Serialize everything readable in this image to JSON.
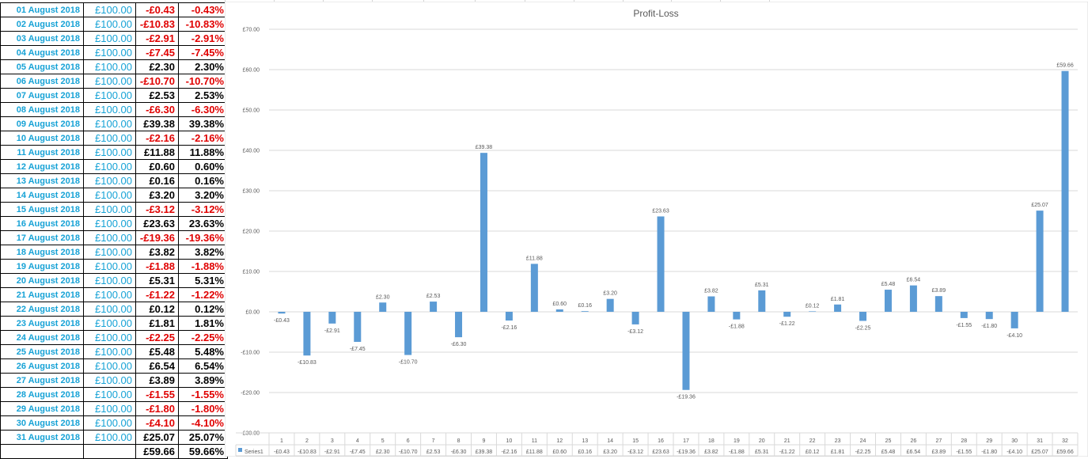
{
  "table": {
    "rows": [
      {
        "date": "01 August 2018",
        "capital": "£100.00",
        "pl": "-£0.43",
        "pct": "-0.43%"
      },
      {
        "date": "02 August 2018",
        "capital": "£100.00",
        "pl": "-£10.83",
        "pct": "-10.83%"
      },
      {
        "date": "03 August 2018",
        "capital": "£100.00",
        "pl": "-£2.91",
        "pct": "-2.91%"
      },
      {
        "date": "04 August 2018",
        "capital": "£100.00",
        "pl": "-£7.45",
        "pct": "-7.45%"
      },
      {
        "date": "05 August 2018",
        "capital": "£100.00",
        "pl": "£2.30",
        "pct": "2.30%"
      },
      {
        "date": "06 August 2018",
        "capital": "£100.00",
        "pl": "-£10.70",
        "pct": "-10.70%"
      },
      {
        "date": "07 August 2018",
        "capital": "£100.00",
        "pl": "£2.53",
        "pct": "2.53%"
      },
      {
        "date": "08 August 2018",
        "capital": "£100.00",
        "pl": "-£6.30",
        "pct": "-6.30%"
      },
      {
        "date": "09 August 2018",
        "capital": "£100.00",
        "pl": "£39.38",
        "pct": "39.38%"
      },
      {
        "date": "10 August 2018",
        "capital": "£100.00",
        "pl": "-£2.16",
        "pct": "-2.16%"
      },
      {
        "date": "11 August 2018",
        "capital": "£100.00",
        "pl": "£11.88",
        "pct": "11.88%"
      },
      {
        "date": "12 August 2018",
        "capital": "£100.00",
        "pl": "£0.60",
        "pct": "0.60%"
      },
      {
        "date": "13 August 2018",
        "capital": "£100.00",
        "pl": "£0.16",
        "pct": "0.16%"
      },
      {
        "date": "14 August 2018",
        "capital": "£100.00",
        "pl": "£3.20",
        "pct": "3.20%"
      },
      {
        "date": "15 August 2018",
        "capital": "£100.00",
        "pl": "-£3.12",
        "pct": "-3.12%"
      },
      {
        "date": "16 August 2018",
        "capital": "£100.00",
        "pl": "£23.63",
        "pct": "23.63%"
      },
      {
        "date": "17 August 2018",
        "capital": "£100.00",
        "pl": "-£19.36",
        "pct": "-19.36%"
      },
      {
        "date": "18 August 2018",
        "capital": "£100.00",
        "pl": "£3.82",
        "pct": "3.82%"
      },
      {
        "date": "19 August 2018",
        "capital": "£100.00",
        "pl": "-£1.88",
        "pct": "-1.88%"
      },
      {
        "date": "20 August 2018",
        "capital": "£100.00",
        "pl": "£5.31",
        "pct": "5.31%"
      },
      {
        "date": "21 August 2018",
        "capital": "£100.00",
        "pl": "-£1.22",
        "pct": "-1.22%"
      },
      {
        "date": "22 August 2018",
        "capital": "£100.00",
        "pl": "£0.12",
        "pct": "0.12%"
      },
      {
        "date": "23 August 2018",
        "capital": "£100.00",
        "pl": "£1.81",
        "pct": "1.81%"
      },
      {
        "date": "24 August 2018",
        "capital": "£100.00",
        "pl": "-£2.25",
        "pct": "-2.25%"
      },
      {
        "date": "25 August 2018",
        "capital": "£100.00",
        "pl": "£5.48",
        "pct": "5.48%"
      },
      {
        "date": "26 August 2018",
        "capital": "£100.00",
        "pl": "£6.54",
        "pct": "6.54%"
      },
      {
        "date": "27 August 2018",
        "capital": "£100.00",
        "pl": "£3.89",
        "pct": "3.89%"
      },
      {
        "date": "28 August 2018",
        "capital": "£100.00",
        "pl": "-£1.55",
        "pct": "-1.55%"
      },
      {
        "date": "29 August 2018",
        "capital": "£100.00",
        "pl": "-£1.80",
        "pct": "-1.80%"
      },
      {
        "date": "30 August 2018",
        "capital": "£100.00",
        "pl": "-£4.10",
        "pct": "-4.10%"
      },
      {
        "date": "31 August 2018",
        "capital": "£100.00",
        "pl": "£25.07",
        "pct": "25.07%"
      }
    ],
    "total": {
      "date": "",
      "capital": "",
      "pl": "£59.66",
      "pct": "59.66%"
    }
  },
  "colors": {
    "date_text": "#16a2d6",
    "negative": "#e00000",
    "positive": "#000000",
    "bar": "#5b9bd5",
    "gridline": "#d9d9d9",
    "axis_text": "#595959"
  },
  "chart_data": {
    "type": "bar",
    "title": "Profit-Loss",
    "categories": [
      "1",
      "2",
      "3",
      "4",
      "5",
      "6",
      "7",
      "8",
      "9",
      "10",
      "11",
      "12",
      "13",
      "14",
      "15",
      "16",
      "17",
      "18",
      "19",
      "20",
      "21",
      "22",
      "23",
      "24",
      "25",
      "26",
      "27",
      "28",
      "29",
      "30",
      "31",
      "32"
    ],
    "series": [
      {
        "name": "Series1",
        "values": [
          -0.43,
          -10.83,
          -2.91,
          -7.45,
          2.3,
          -10.7,
          2.53,
          -6.3,
          39.38,
          -2.16,
          11.88,
          0.6,
          0.16,
          3.2,
          -3.12,
          23.63,
          -19.36,
          3.82,
          -1.88,
          5.31,
          -1.22,
          0.12,
          1.81,
          -2.25,
          5.48,
          6.54,
          3.89,
          -1.55,
          -1.8,
          -4.1,
          25.07,
          59.66
        ],
        "labels": [
          "-£0.43",
          "-£10.83",
          "-£2.91",
          "-£7.45",
          "£2.30",
          "-£10.70",
          "£2.53",
          "-£6.30",
          "£39.38",
          "-£2.16",
          "£11.88",
          "£0.60",
          "£0.16",
          "£3.20",
          "-£3.12",
          "£23.63",
          "-£19.36",
          "£3.82",
          "-£1.88",
          "£5.31",
          "-£1.22",
          "£0.12",
          "£1.81",
          "-£2.25",
          "£5.48",
          "£6.54",
          "£3.89",
          "-£1.55",
          "-£1.80",
          "-£4.10",
          "£25.07",
          "£59.66"
        ]
      }
    ],
    "ylim": [
      -30,
      70
    ],
    "ytick_values": [
      -30,
      -20,
      -10,
      0,
      10,
      20,
      30,
      40,
      50,
      60,
      70
    ],
    "ytick_labels": [
      "-£30.00",
      "-£20.00",
      "-£10.00",
      "£0.00",
      "£10.00",
      "£20.00",
      "£30.00",
      "£40.00",
      "£50.00",
      "£60.00",
      "£70.00"
    ],
    "grid": true,
    "data_table": true,
    "legend_placement": "data table, left"
  }
}
